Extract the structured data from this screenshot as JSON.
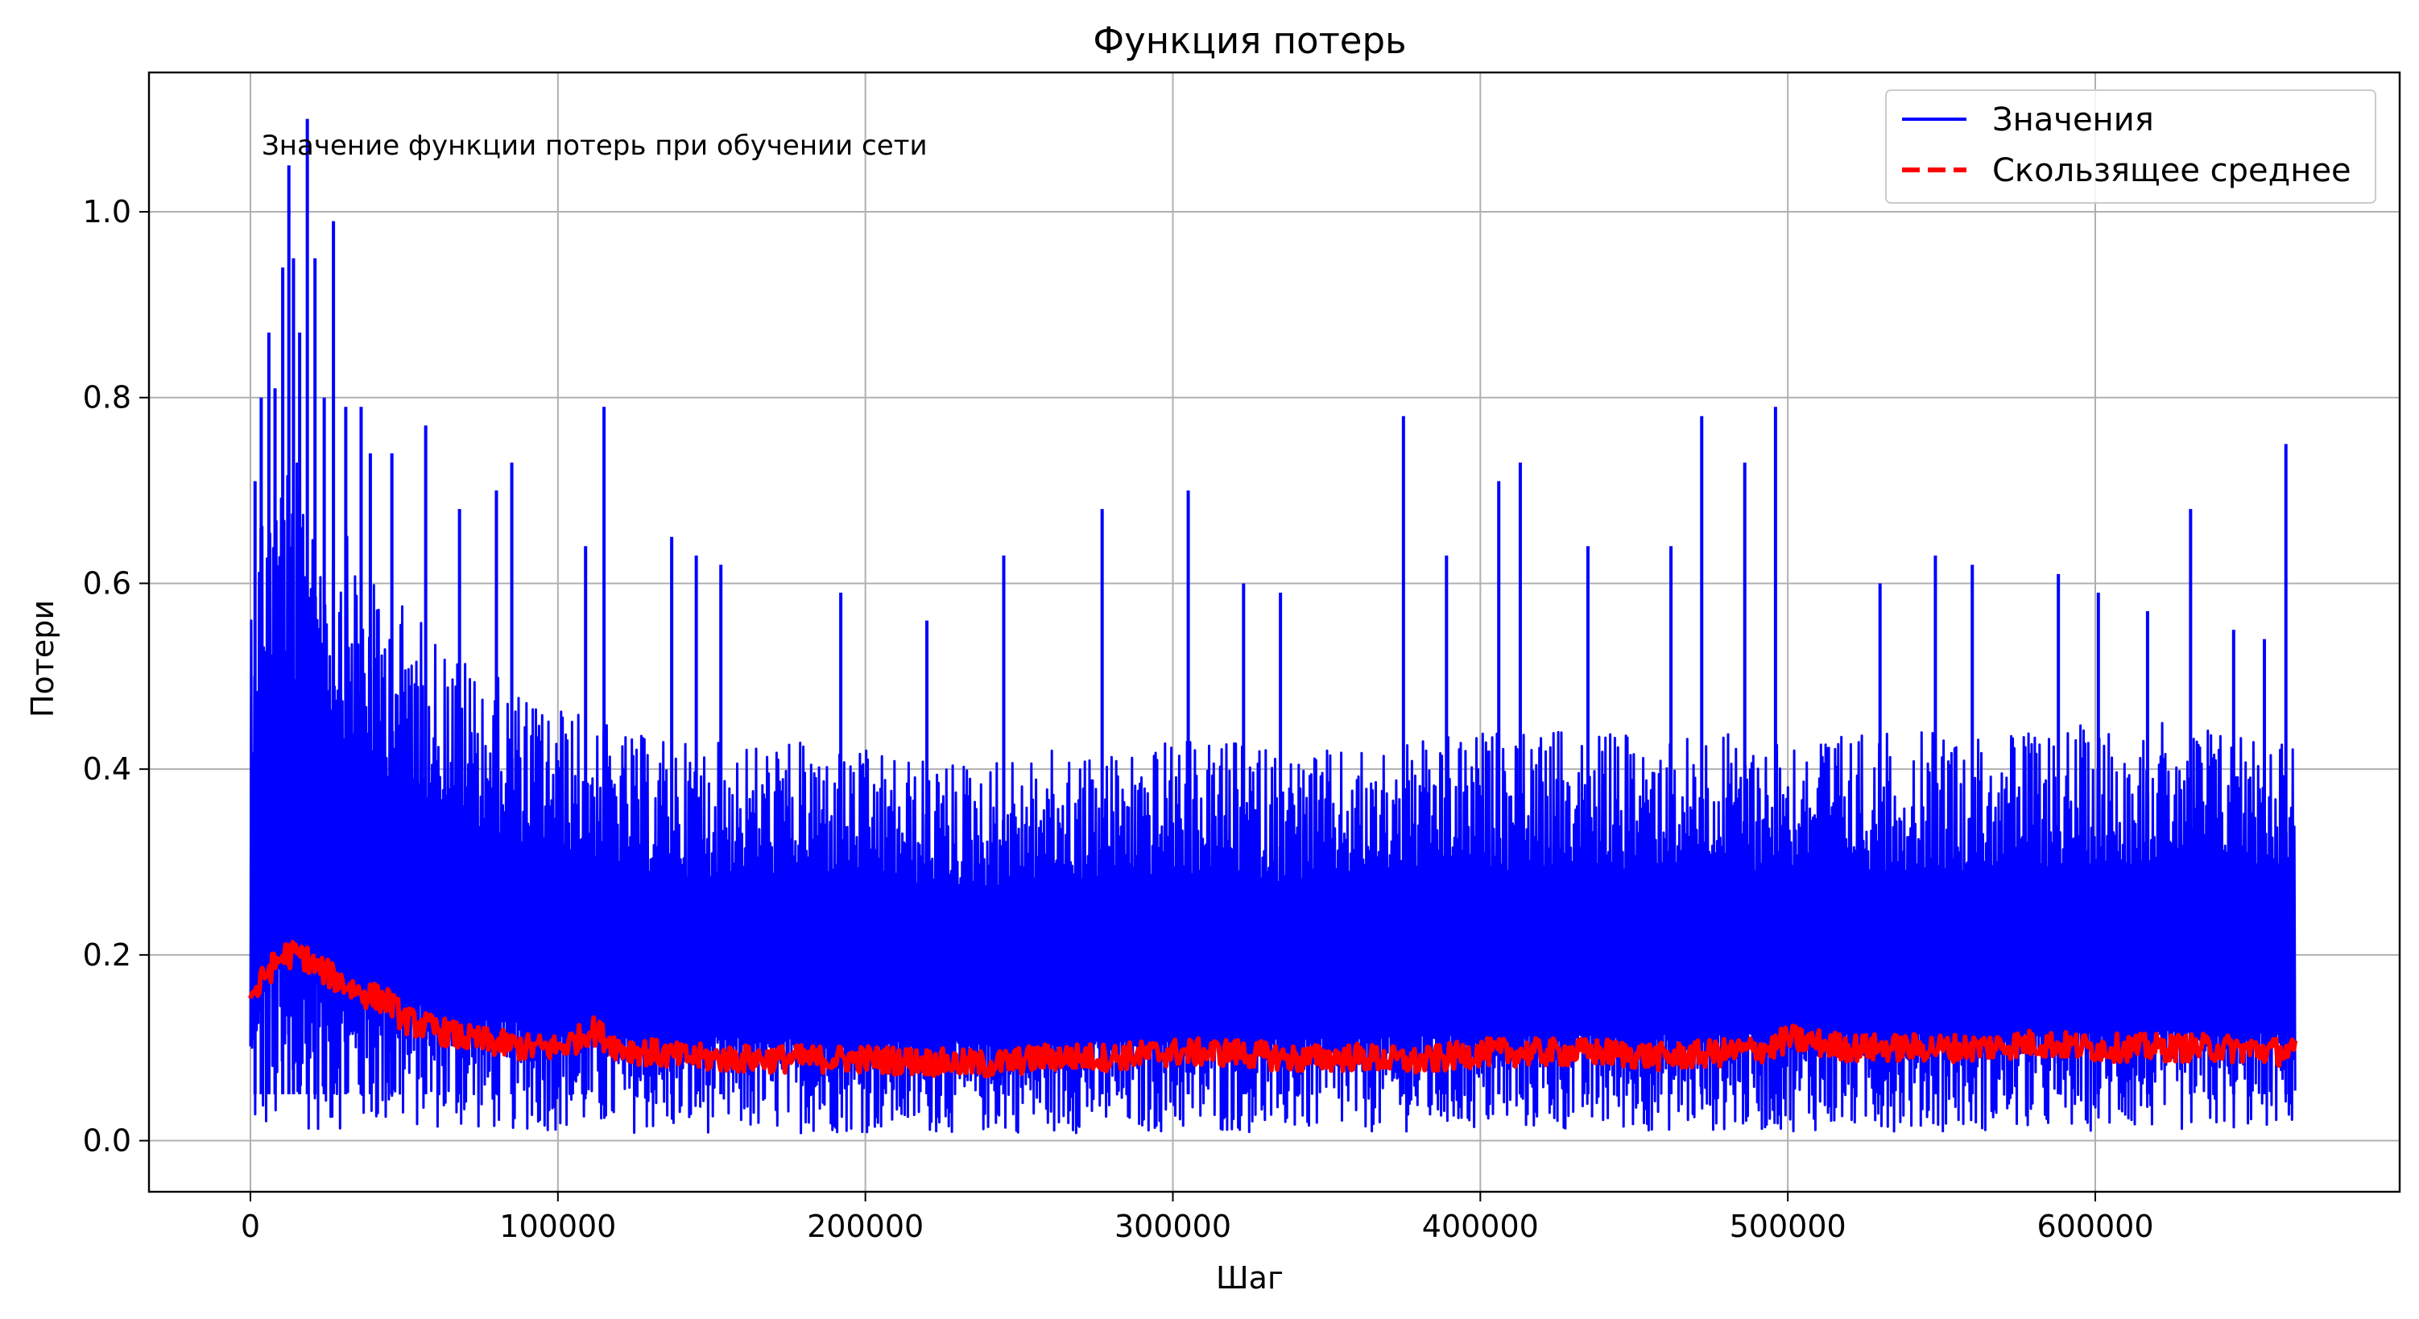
{
  "chart_data": {
    "type": "line",
    "title": "Функция потерь",
    "xlabel": "Шаг",
    "ylabel": "Потери",
    "xlim": [
      -33000,
      699000
    ],
    "ylim": [
      -0.055,
      1.15
    ],
    "xticks": [
      0,
      100000,
      200000,
      300000,
      400000,
      500000,
      600000
    ],
    "xtick_labels": [
      "0",
      "100000",
      "200000",
      "300000",
      "400000",
      "500000",
      "600000"
    ],
    "yticks": [
      0.0,
      0.2,
      0.4,
      0.6,
      0.8,
      1.0
    ],
    "ytick_labels": [
      "0.0",
      "0.2",
      "0.4",
      "0.6",
      "0.8",
      "1.0"
    ],
    "grid": true,
    "legend_position": "top-right",
    "annotation": "Значение функции потерь при обучении сети",
    "colors": {
      "values": "#0000ff",
      "moving_average": "#ff0000",
      "grid": "#b0b0b0"
    },
    "series": [
      {
        "name": "Значения",
        "style": "solid",
        "color": "#0000ff",
        "x_range": [
          0,
          665000
        ],
        "envelope": {
          "x": [
            0,
            5000,
            10000,
            20000,
            30000,
            40000,
            50000,
            60000,
            70000,
            80000,
            90000,
            100000,
            110000,
            120000,
            140000,
            160000,
            180000,
            200000,
            220000,
            240000,
            260000,
            280000,
            300000,
            320000,
            340000,
            360000,
            380000,
            400000,
            420000,
            440000,
            460000,
            480000,
            500000,
            520000,
            540000,
            560000,
            580000,
            600000,
            620000,
            640000,
            665000
          ],
          "lower": [
            0.0,
            0.0,
            0.005,
            0.01,
            0.012,
            0.012,
            0.012,
            0.012,
            0.01,
            0.01,
            0.01,
            0.01,
            0.01,
            0.008,
            0.008,
            0.008,
            0.008,
            0.008,
            0.008,
            0.008,
            0.008,
            0.008,
            0.008,
            0.008,
            0.008,
            0.008,
            0.01,
            0.01,
            0.01,
            0.01,
            0.01,
            0.01,
            0.01,
            0.01,
            0.01,
            0.01,
            0.01,
            0.01,
            0.01,
            0.01,
            0.015
          ],
          "upper": [
            0.62,
            0.75,
            0.75,
            0.72,
            0.66,
            0.6,
            0.58,
            0.55,
            0.52,
            0.5,
            0.48,
            0.47,
            0.46,
            0.44,
            0.43,
            0.43,
            0.43,
            0.42,
            0.41,
            0.41,
            0.42,
            0.42,
            0.43,
            0.43,
            0.42,
            0.42,
            0.43,
            0.44,
            0.44,
            0.44,
            0.44,
            0.44,
            0.44,
            0.44,
            0.44,
            0.44,
            0.44,
            0.45,
            0.45,
            0.45,
            0.44
          ]
        },
        "peaks": [
          [
            1500,
            0.71
          ],
          [
            3500,
            0.8
          ],
          [
            6000,
            0.87
          ],
          [
            8000,
            0.81
          ],
          [
            10500,
            0.94
          ],
          [
            12500,
            1.05
          ],
          [
            14000,
            0.95
          ],
          [
            16000,
            0.87
          ],
          [
            18500,
            1.1
          ],
          [
            21000,
            0.95
          ],
          [
            24000,
            0.8
          ],
          [
            27000,
            0.99
          ],
          [
            31000,
            0.79
          ],
          [
            36000,
            0.79
          ],
          [
            39000,
            0.74
          ],
          [
            46000,
            0.74
          ],
          [
            57000,
            0.77
          ],
          [
            68000,
            0.68
          ],
          [
            80000,
            0.7
          ],
          [
            85000,
            0.73
          ],
          [
            109000,
            0.64
          ],
          [
            115000,
            0.79
          ],
          [
            137000,
            0.65
          ],
          [
            145000,
            0.63
          ],
          [
            153000,
            0.62
          ],
          [
            192000,
            0.59
          ],
          [
            220000,
            0.56
          ],
          [
            245000,
            0.63
          ],
          [
            277000,
            0.68
          ],
          [
            305000,
            0.7
          ],
          [
            323000,
            0.6
          ],
          [
            335000,
            0.59
          ],
          [
            375000,
            0.78
          ],
          [
            389000,
            0.63
          ],
          [
            406000,
            0.71
          ],
          [
            413000,
            0.73
          ],
          [
            435000,
            0.64
          ],
          [
            462000,
            0.64
          ],
          [
            472000,
            0.78
          ],
          [
            486000,
            0.73
          ],
          [
            496000,
            0.79
          ],
          [
            530000,
            0.6
          ],
          [
            548000,
            0.63
          ],
          [
            560000,
            0.62
          ],
          [
            588000,
            0.61
          ],
          [
            601000,
            0.59
          ],
          [
            617000,
            0.57
          ],
          [
            631000,
            0.68
          ],
          [
            645000,
            0.55
          ],
          [
            655000,
            0.54
          ],
          [
            662000,
            0.75
          ]
        ]
      },
      {
        "name": "Скользящее среднее",
        "style": "dashed",
        "color": "#ff0000",
        "x": [
          0,
          2000,
          5000,
          8000,
          11000,
          14000,
          17000,
          20000,
          25000,
          30000,
          35000,
          40000,
          45000,
          50000,
          55000,
          60000,
          70000,
          80000,
          90000,
          100000,
          107000,
          111000,
          120000,
          140000,
          160000,
          180000,
          200000,
          220000,
          240000,
          260000,
          280000,
          300000,
          320000,
          340000,
          360000,
          380000,
          400000,
          420000,
          440000,
          460000,
          480000,
          495000,
          500000,
          520000,
          540000,
          560000,
          580000,
          600000,
          620000,
          640000,
          665000
        ],
        "values": [
          0.16,
          0.16,
          0.18,
          0.19,
          0.2,
          0.2,
          0.2,
          0.19,
          0.18,
          0.17,
          0.16,
          0.155,
          0.15,
          0.13,
          0.125,
          0.12,
          0.11,
          0.105,
          0.1,
          0.1,
          0.11,
          0.12,
          0.1,
          0.09,
          0.088,
          0.088,
          0.088,
          0.085,
          0.082,
          0.09,
          0.09,
          0.095,
          0.095,
          0.088,
          0.09,
          0.085,
          0.095,
          0.095,
          0.095,
          0.09,
          0.095,
          0.1,
          0.11,
          0.1,
          0.1,
          0.1,
          0.105,
          0.1,
          0.1,
          0.1,
          0.095
        ]
      }
    ]
  }
}
